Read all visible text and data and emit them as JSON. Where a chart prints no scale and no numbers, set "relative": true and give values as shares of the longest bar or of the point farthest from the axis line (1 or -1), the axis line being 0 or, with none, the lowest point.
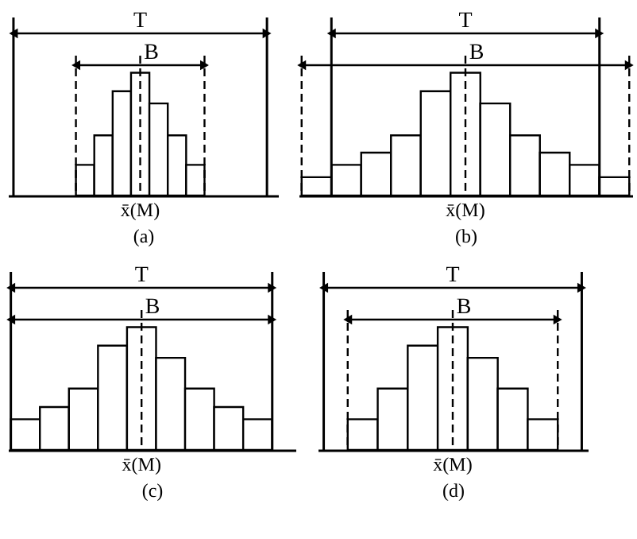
{
  "chart_data": [
    {
      "type": "bar",
      "relative": true,
      "categories": [
        null,
        null,
        null,
        null,
        null,
        null,
        null
      ],
      "values": [
        0.25,
        0.49,
        0.85,
        1,
        0.75,
        0.49,
        0.25
      ],
      "color": "#ffffff",
      "xlabel": "(a)",
      "annotations": [
        "T",
        "B",
        "x̄(M)"
      ]
    },
    {
      "type": "bar",
      "relative": true,
      "categories": [
        null,
        null,
        null,
        null,
        null,
        null,
        null,
        null,
        null,
        null,
        null
      ],
      "values": [
        0.15,
        0.25,
        0.35,
        0.49,
        0.85,
        1,
        0.75,
        0.49,
        0.35,
        0.25,
        0.15
      ],
      "color": "#ffffff",
      "xlabel": "(b)",
      "annotations": [
        "T",
        "B",
        "x̄(M)"
      ]
    },
    {
      "type": "bar",
      "relative": true,
      "categories": [
        null,
        null,
        null,
        null,
        null,
        null,
        null,
        null,
        null
      ],
      "values": [
        0.25,
        0.35,
        0.5,
        0.85,
        1,
        0.75,
        0.5,
        0.35,
        0.25
      ],
      "color": "#ffffff",
      "xlabel": "(c)",
      "annotations": [
        "T",
        "B",
        "x̄(M)"
      ]
    },
    {
      "type": "bar",
      "relative": true,
      "categories": [
        null,
        null,
        null,
        null,
        null,
        null,
        null
      ],
      "values": [
        0.25,
        0.5,
        0.85,
        1,
        0.75,
        0.5,
        0.25
      ],
      "color": "#ffffff",
      "xlabel": "(d)",
      "annotations": [
        "T",
        "B",
        "x̄(M)"
      ]
    }
  ]
}
